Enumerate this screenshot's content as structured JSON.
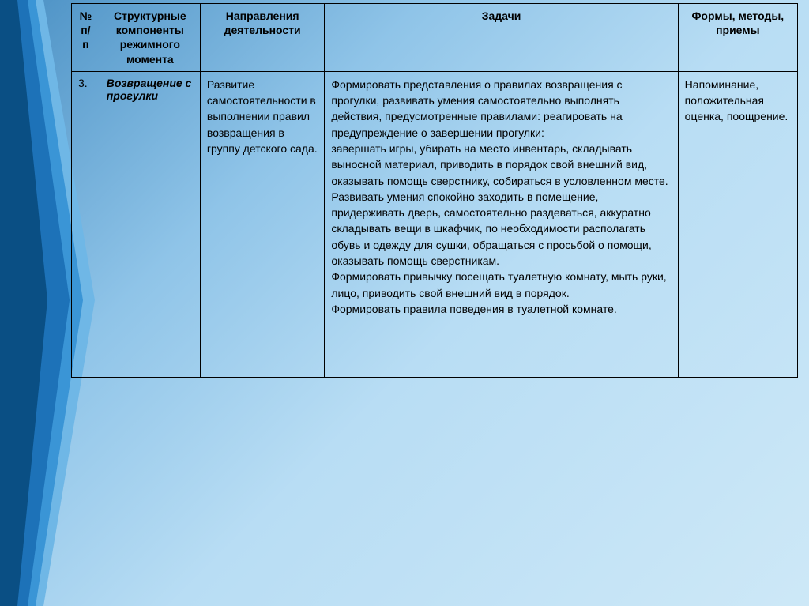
{
  "table": {
    "headers": {
      "num": "№ п/п",
      "components": "Структурные компоненты режимного момента",
      "directions": "Направления деятельности",
      "tasks": "Задачи",
      "forms": "Формы, методы, приемы"
    },
    "row": {
      "num": "3.",
      "components": "Возвращение с прогулки",
      "directions": "Развитие самостоятельности в выполнении правил возвращения в группу детского сада.",
      "tasks": "Формировать представления о правилах возвращения с прогулки, развивать умения самостоятельно выполнять действия, предусмотренные правилами: реагировать на предупреждение о завершении прогулки:\nзавершать игры, убирать на место инвентарь, складывать выносной материал, приводить в порядок свой внешний вид, оказывать помощь сверстнику, собираться в условленном месте.\nРазвивать умения спокойно заходить в помещение, придерживать дверь, самостоятельно раздеваться, аккуратно складывать вещи в шкафчик, по необходимости располагать обувь и одежду для сушки, обращаться с просьбой о помощи, оказывать помощь сверстникам.\nФормировать привычку посещать туалетную комнату, мыть руки, лицо, приводить свой внешний вид в порядок.\nФормировать правила поведения в туалетной комнате.",
      "forms": "Напоминание, положительная оценка, поощрение."
    }
  },
  "ribbon": {
    "colors": {
      "dark": "#0a4f84",
      "mid": "#1d72b8",
      "light": "#3a95d6",
      "edge": "#6fb7e6"
    }
  }
}
